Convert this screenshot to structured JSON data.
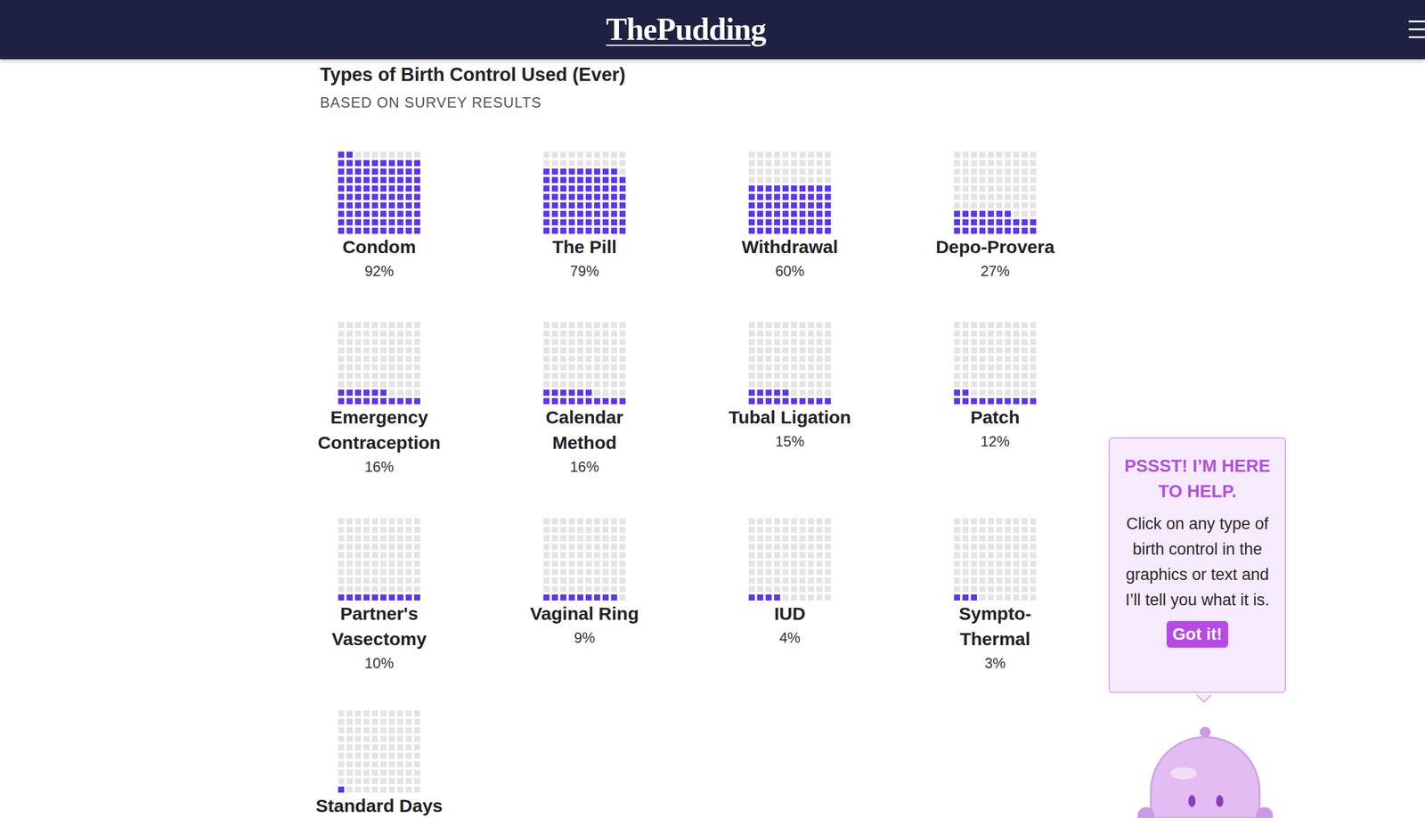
{
  "header": {
    "logo": "ThePudding"
  },
  "chart_data": {
    "type": "waffle",
    "title": "Types of Birth Control Used (Ever)",
    "subtitle": "BASED ON SURVEY RESULTS",
    "categories": [
      "Condom",
      "The Pill",
      "Withdrawal",
      "Depo-Provera",
      "Emergency Contraception",
      "Calendar Method",
      "Tubal Ligation",
      "Patch",
      "Partner's Vasectomy",
      "Vaginal Ring",
      "IUD",
      "Sympto-Thermal",
      "Standard Days"
    ],
    "values": [
      92,
      79,
      60,
      27,
      16,
      16,
      15,
      12,
      10,
      9,
      4,
      3,
      1
    ],
    "value_labels": [
      "92%",
      "79%",
      "60%",
      "27%",
      "16%",
      "16%",
      "15%",
      "12%",
      "10%",
      "9%",
      "4%",
      "3%",
      null
    ],
    "color": "#5b35f5",
    "data_labels": true
  },
  "helper": {
    "title": "PSSST! I’M HERE TO HELP.",
    "text": "Click on any type of birth control in the graphics or text and I’ll tell you what it is.",
    "button": "Got it!"
  }
}
